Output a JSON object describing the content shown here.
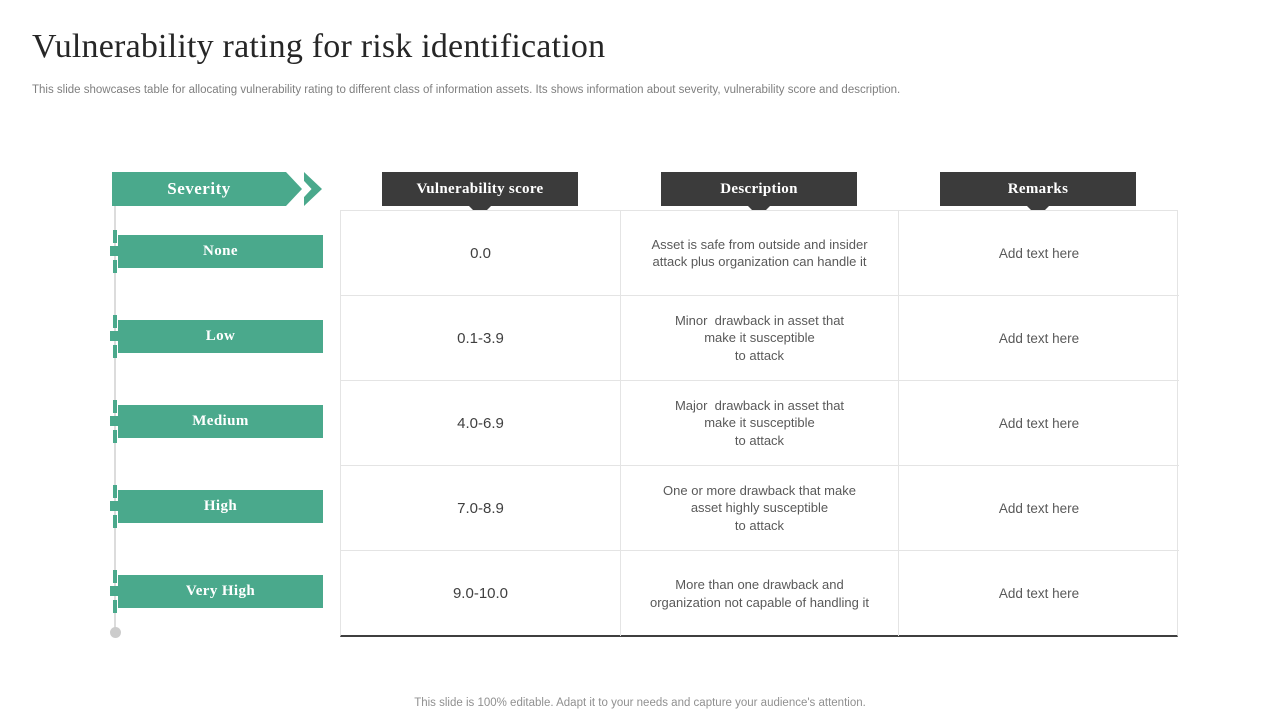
{
  "slide": {
    "title": "Vulnerability rating for risk identification",
    "subtitle": "This slide showcases table for allocating vulnerability rating to different class of information assets. Its shows information about severity, vulnerability score and description.",
    "footer": "This slide is 100% editable. Adapt it to your needs and capture your audience's attention."
  },
  "colors": {
    "accent_green": "#4AA98C",
    "header_dark": "#3B3B3B",
    "table_border": "#E4E4E4"
  },
  "severity": {
    "header": "Severity",
    "levels": [
      {
        "label": "None"
      },
      {
        "label": "Low"
      },
      {
        "label": "Medium"
      },
      {
        "label": "High"
      },
      {
        "label": "Very High"
      }
    ]
  },
  "table": {
    "columns": [
      {
        "label": "Vulnerability score"
      },
      {
        "label": "Description"
      },
      {
        "label": "Remarks"
      }
    ],
    "rows": [
      {
        "score": "0.0",
        "description": [
          "Asset is safe from outside and insider",
          "attack plus organization can handle it"
        ],
        "remarks": "Add text here"
      },
      {
        "score": "0.1-3.9",
        "description": [
          "Minor  drawback in asset that",
          "make it susceptible",
          "to attack"
        ],
        "remarks": "Add text here"
      },
      {
        "score": "4.0-6.9",
        "description": [
          "Major  drawback in asset that",
          "make it susceptible",
          "to attack"
        ],
        "remarks": "Add text here"
      },
      {
        "score": "7.0-8.9",
        "description": [
          "One or more drawback that make",
          "asset highly susceptible",
          "to attack"
        ],
        "remarks": "Add text here"
      },
      {
        "score": "9.0-10.0",
        "description": [
          "More than one drawback and",
          "organization not capable of handling it"
        ],
        "remarks": "Add text here"
      }
    ]
  }
}
